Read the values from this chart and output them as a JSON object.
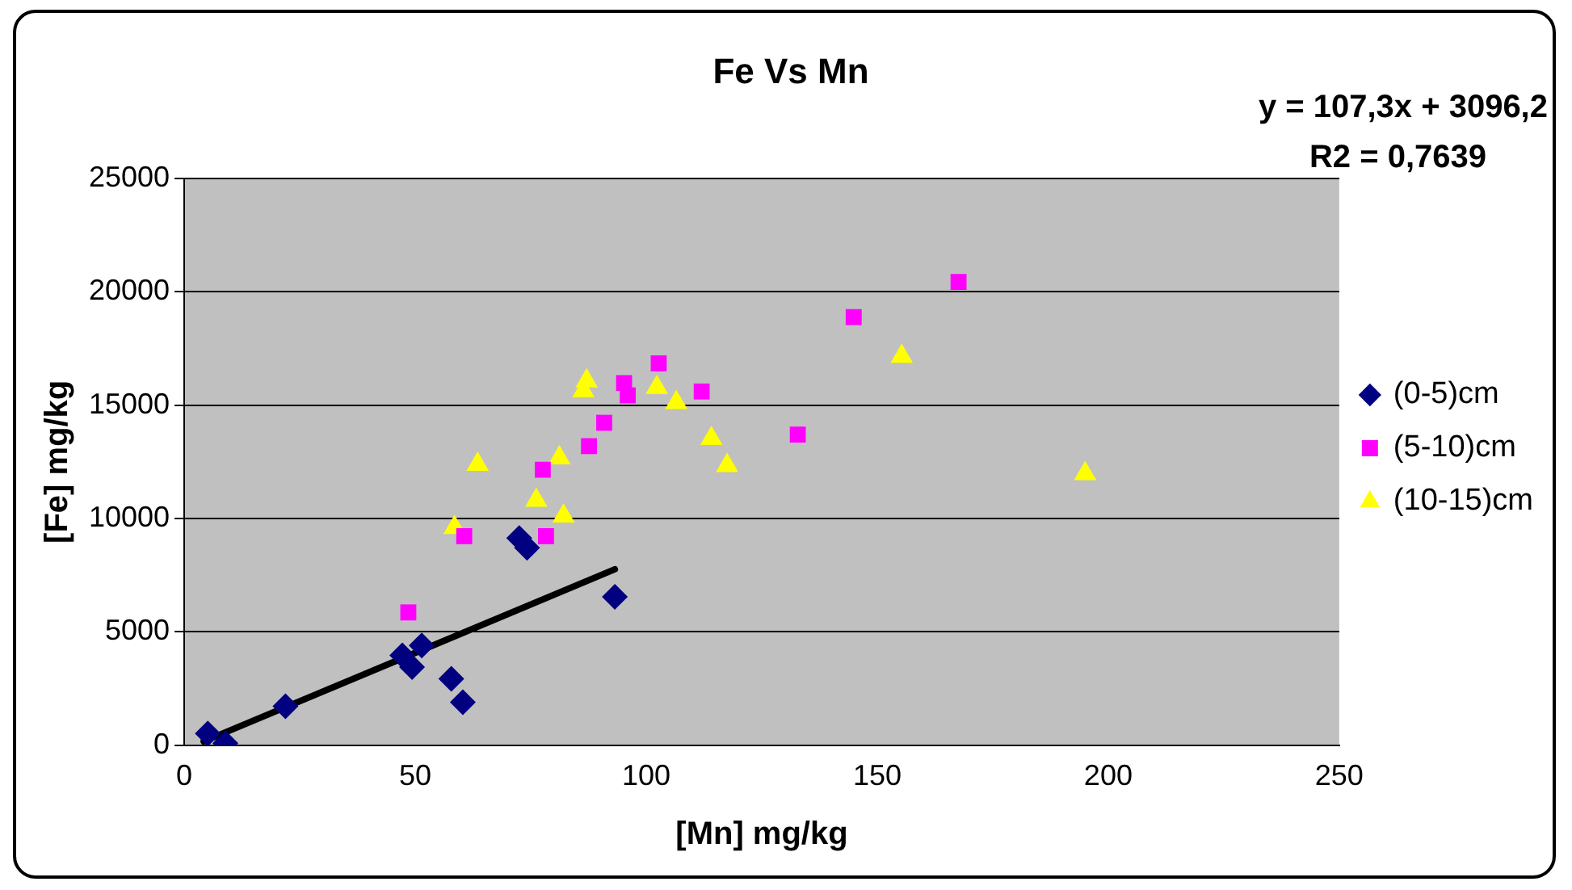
{
  "chart_data": {
    "type": "scatter",
    "title": "Fe Vs Mn",
    "xlabel": "[Mn] mg/kg",
    "ylabel": "[Fe] mg/kg",
    "annotations": [
      "y = 107,3x + 3096,2",
      "R2 = 0,7639"
    ],
    "xlim": [
      0,
      250
    ],
    "xticks": [
      0,
      50,
      100,
      150,
      200,
      250
    ],
    "ylim": [
      0,
      25000
    ],
    "yticks": [
      0,
      5000,
      10000,
      15000,
      20000,
      25000
    ],
    "grid": "y",
    "legend": "right",
    "series": [
      {
        "name": "(0-5)cm",
        "color": "#000080",
        "marker": "diamond",
        "x": [
          5.1,
          8.9,
          21.9,
          47.2,
          49.3,
          51.4,
          57.8,
          60.3,
          72.5,
          74.2,
          93.2
        ],
        "values": [
          520,
          90,
          1720,
          3960,
          3450,
          4400,
          2930,
          1900,
          9140,
          8710,
          6550
        ]
      },
      {
        "name": "(5-10)cm",
        "color": "#ff00ff",
        "marker": "square",
        "x": [
          48.5,
          60.6,
          77.6,
          78.3,
          87.6,
          90.9,
          95.2,
          96,
          102.7,
          112,
          132.8,
          144.9,
          167.6
        ],
        "values": [
          5860,
          9220,
          12150,
          9220,
          13190,
          14220,
          15970,
          15430,
          16840,
          15600,
          13700,
          18880,
          20430
        ]
      },
      {
        "name": "(10-15)cm",
        "color": "#ffff00",
        "marker": "triangle",
        "x": [
          58.5,
          63.5,
          76.2,
          81.2,
          82.1,
          86.4,
          87.1,
          102.3,
          106.5,
          114.1,
          117.5,
          155.3,
          195
        ],
        "values": [
          9600,
          12390,
          10800,
          12670,
          10110,
          15630,
          16060,
          15780,
          15110,
          13530,
          12330,
          17150,
          11980
        ]
      },
      {
        "type": "line",
        "color": "#000000",
        "marker": "none",
        "x": [
          4.2,
          93.2
        ],
        "values": [
          170,
          7760
        ]
      }
    ]
  }
}
